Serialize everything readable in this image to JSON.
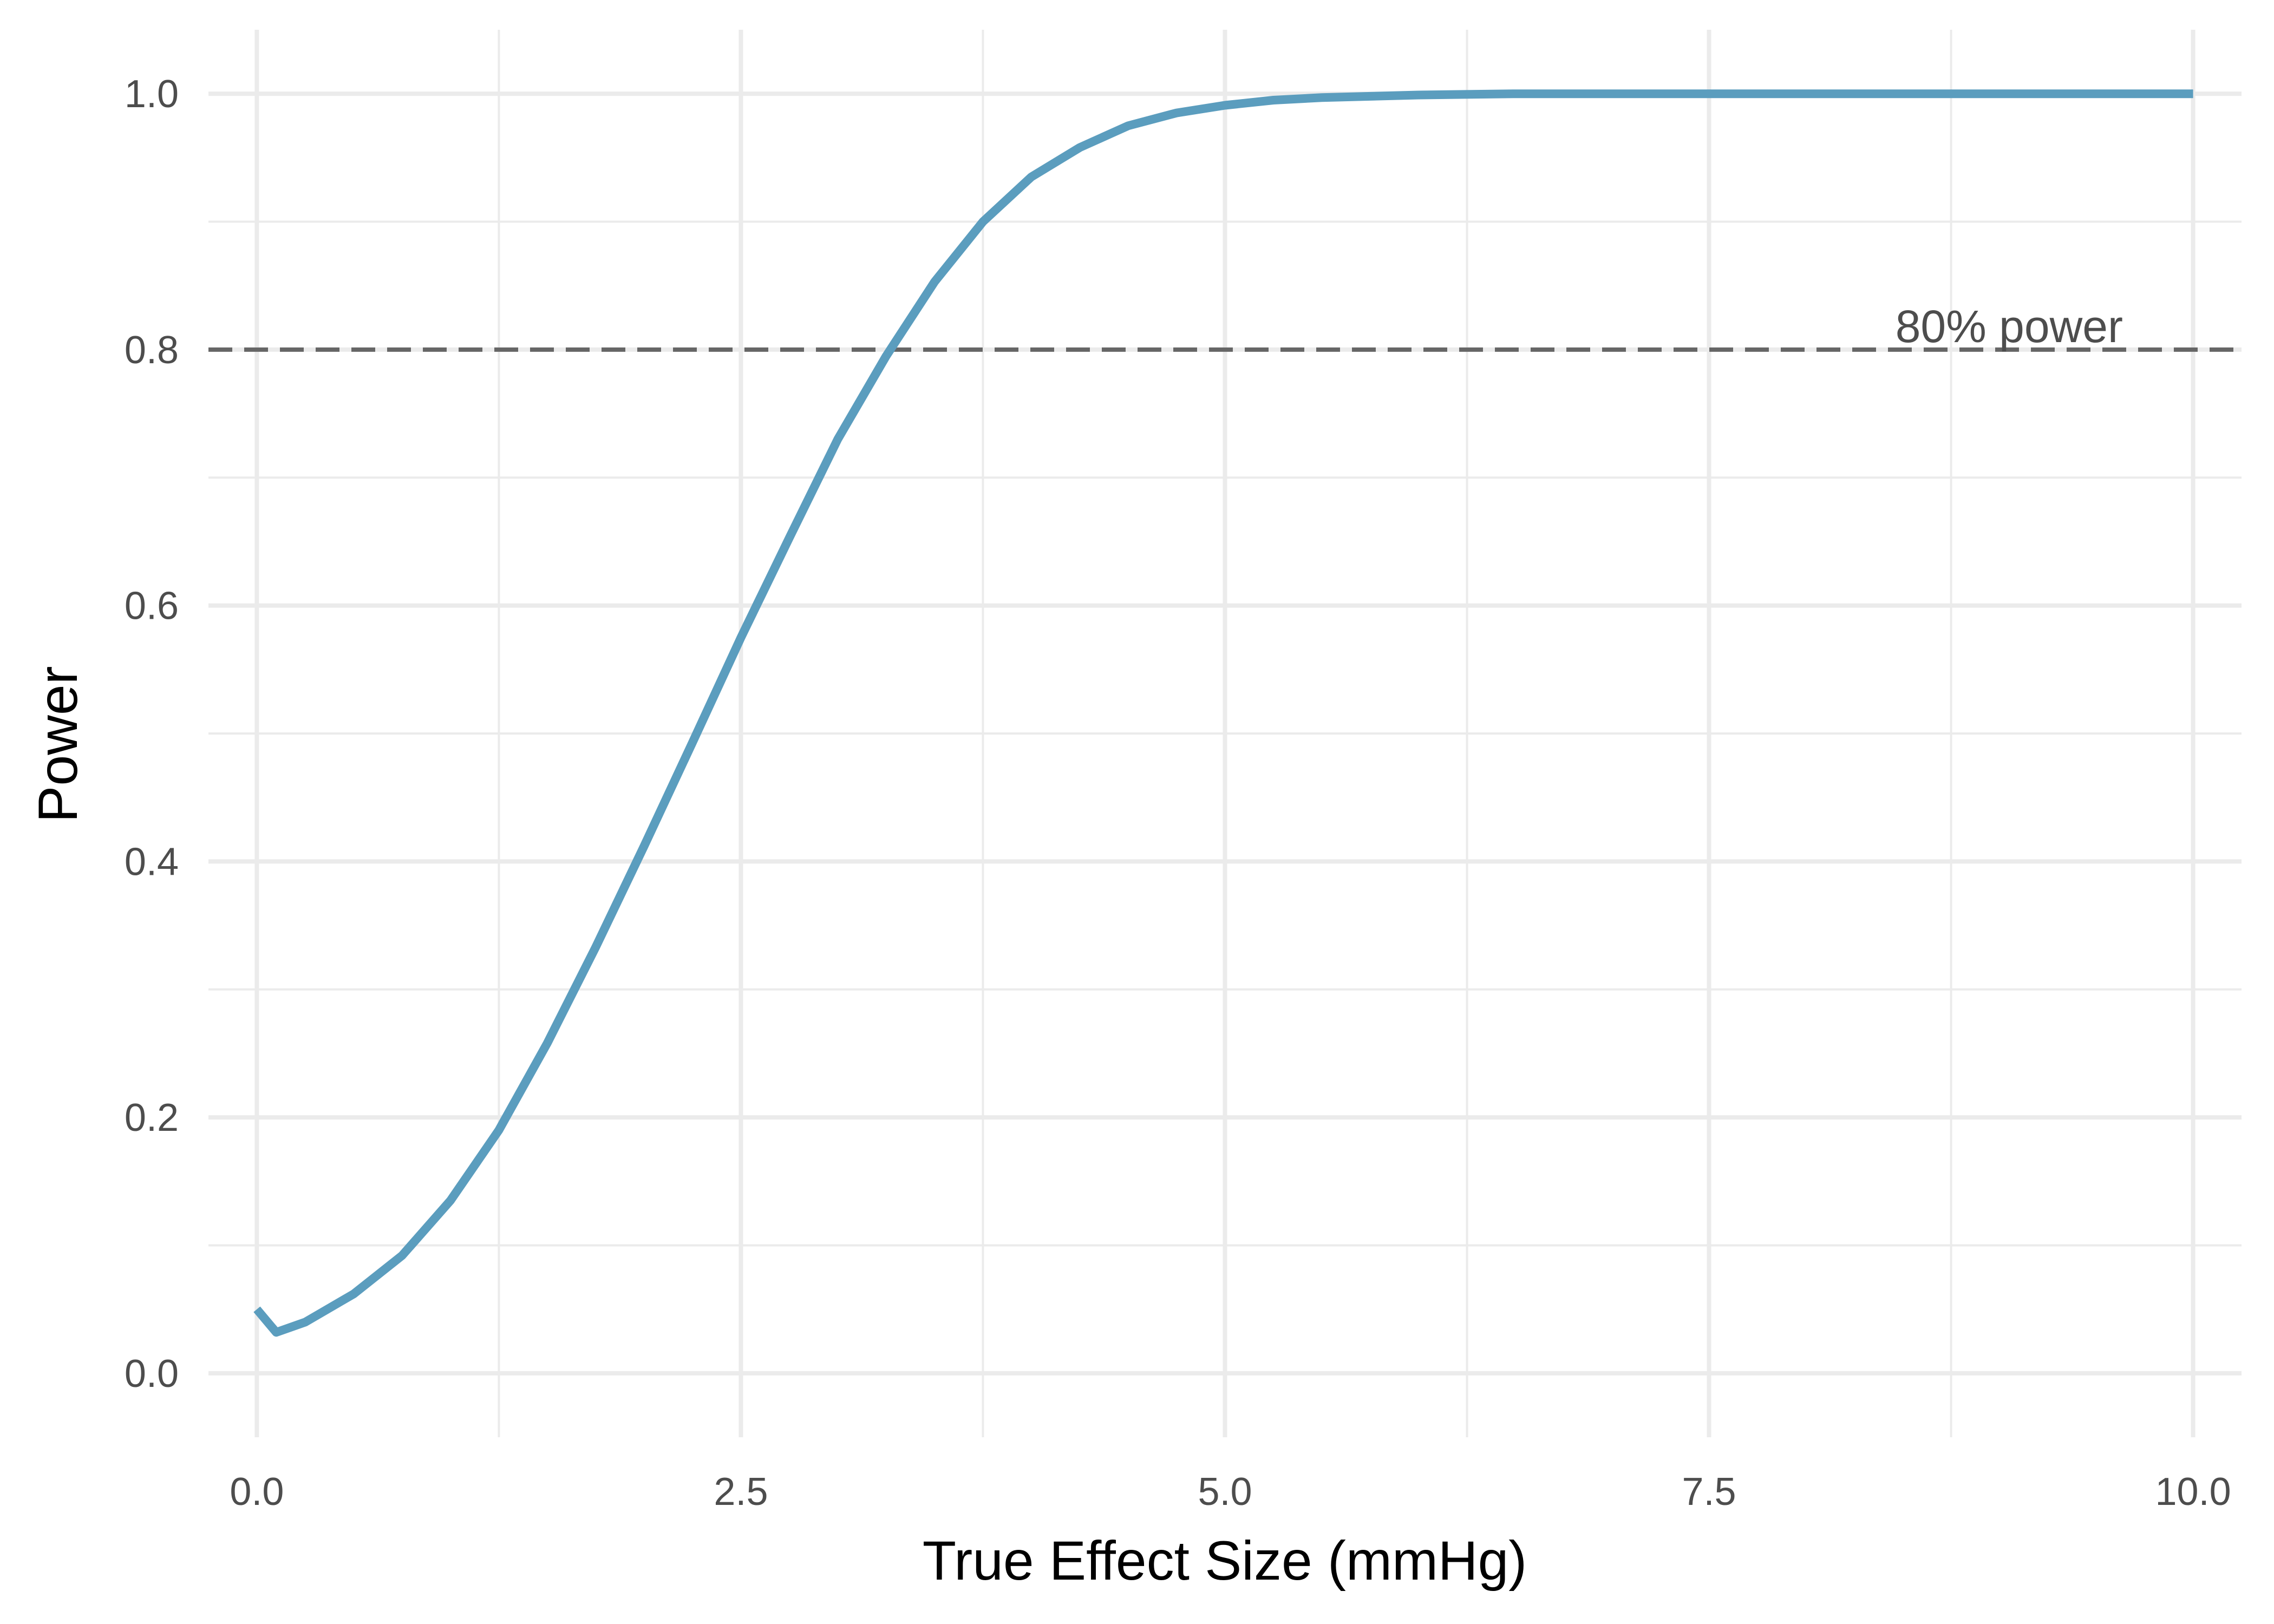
{
  "chart_data": {
    "type": "line",
    "title": "",
    "xlabel": "True Effect Size (mmHg)",
    "ylabel": "Power",
    "xlim": [
      -0.25,
      10.25
    ],
    "ylim": [
      -0.05,
      1.05
    ],
    "x_ticks": [
      0,
      2.5,
      5,
      7.5,
      10
    ],
    "x_tick_labels": [
      "0.0",
      "2.5",
      "5.0",
      "7.5",
      "10.0"
    ],
    "y_ticks": [
      0,
      0.2,
      0.4,
      0.6,
      0.8,
      1.0
    ],
    "y_tick_labels": [
      "0.0",
      "0.2",
      "0.4",
      "0.6",
      "0.8",
      "1.0"
    ],
    "grid": true,
    "legend": "none",
    "series": [
      {
        "color": "#5b9dbe",
        "x": [
          0,
          0.1,
          0.25,
          0.5,
          0.75,
          1.0,
          1.25,
          1.5,
          1.75,
          2.0,
          2.25,
          2.5,
          2.75,
          3.0,
          3.25,
          3.5,
          3.75,
          4.0,
          4.25,
          4.5,
          4.75,
          5.0,
          5.25,
          5.5,
          6.0,
          6.5,
          7.0,
          7.5,
          8.0,
          8.5,
          9.0,
          9.5,
          10.0
        ],
        "y": [
          0.05,
          0.032,
          0.04,
          0.062,
          0.092,
          0.135,
          0.19,
          0.258,
          0.333,
          0.412,
          0.493,
          0.575,
          0.653,
          0.73,
          0.795,
          0.853,
          0.9,
          0.935,
          0.958,
          0.975,
          0.985,
          0.991,
          0.995,
          0.997,
          0.999,
          1.0,
          1.0,
          1.0,
          1.0,
          1.0,
          1.0,
          1.0,
          1.0
        ]
      }
    ],
    "reference_lines": [
      {
        "axis": "y",
        "value": 0.8,
        "style": "dashed",
        "color": "#666666",
        "label": "80% power"
      }
    ]
  },
  "colors": {
    "grid": "#ebebeb",
    "line": "#5b9dbe",
    "reference": "#666666",
    "tick_text": "#4d4d4d",
    "title_text": "#000000"
  }
}
